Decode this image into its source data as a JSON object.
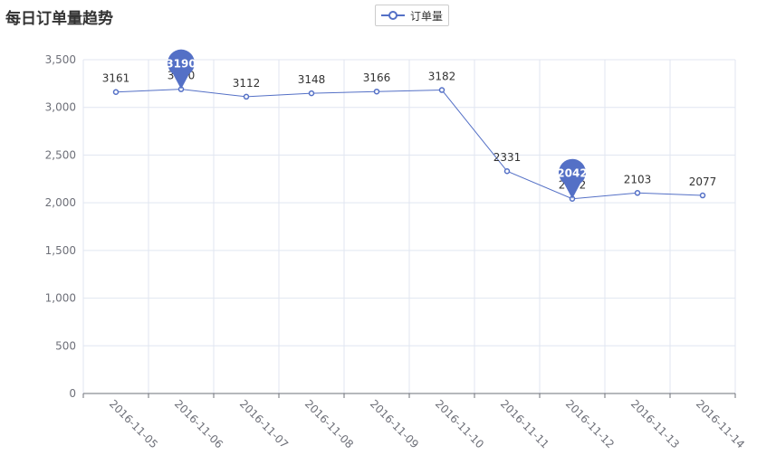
{
  "chart_data": {
    "type": "line",
    "title": "每日订单量趋势",
    "legend": {
      "position": "top-center",
      "entries": [
        "订单量"
      ]
    },
    "categories": [
      "2016-11-05",
      "2016-11-06",
      "2016-11-07",
      "2016-11-08",
      "2016-11-09",
      "2016-11-10",
      "2016-11-11",
      "2016-11-12",
      "2016-11-13",
      "2016-11-14"
    ],
    "series": [
      {
        "name": "订单量",
        "values": [
          3161,
          3190,
          3112,
          3148,
          3166,
          3182,
          2331,
          2042,
          2103,
          2077
        ],
        "color": "#5470c6"
      }
    ],
    "markPoints": [
      {
        "category": "2016-11-06",
        "value": 3190,
        "type": "max"
      },
      {
        "category": "2016-11-12",
        "value": 2042,
        "type": "min"
      }
    ],
    "yticks": [
      0,
      500,
      1000,
      1500,
      2000,
      2500,
      3000,
      3500
    ],
    "ytick_labels": [
      "0",
      "500",
      "1,000",
      "1,500",
      "2,000",
      "2,500",
      "3,000",
      "3,500"
    ],
    "ylim": [
      0,
      3500
    ],
    "grid": true,
    "xlabel": "",
    "ylabel": ""
  }
}
